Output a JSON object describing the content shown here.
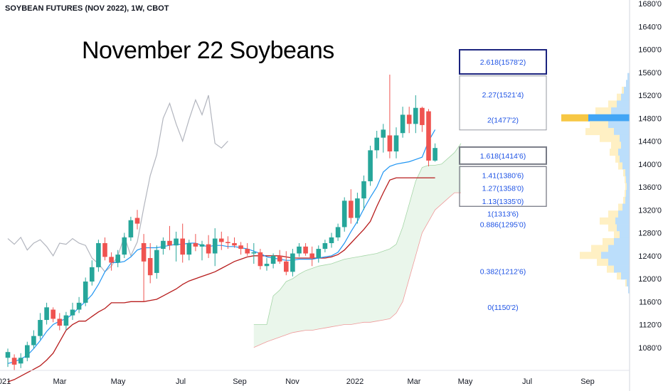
{
  "chart_data": {
    "type": "candlestick",
    "title": "SOYBEAN FUTURES (NOV 2022), 1W, CBOT",
    "annotation": "November 22 Soybeans",
    "ylim": [
      1040,
      1680
    ],
    "y_ticks": [
      "1680'0",
      "1640'0",
      "1600'0",
      "1560'0",
      "1520'0",
      "1480'0",
      "1440'0",
      "1400'0",
      "1360'0",
      "1320'0",
      "1280'0",
      "1240'0",
      "1200'0",
      "1160'0",
      "1120'0",
      "1080'0"
    ],
    "x_ticks": [
      "021",
      "Mar",
      "May",
      "Jul",
      "Sep",
      "Nov",
      "2022",
      "Mar",
      "May",
      "Jul",
      "Sep"
    ],
    "colors": {
      "up": "#26a69a",
      "down": "#ef5350",
      "conversion": "#2196f3",
      "base": "#b71c1c",
      "lagging": "#b2b5be",
      "cloud": "#e8f5e9",
      "fib_text": "#1e53e5",
      "vp_up": "#bbdefb",
      "vp_down": "#fff0c4",
      "poc_blue": "#42a5f5",
      "poc_yellow": "#f7c744"
    },
    "candles": [
      {
        "o": 1062,
        "h": 1078,
        "l": 1046,
        "c": 1072
      },
      {
        "o": 1062,
        "h": 1068,
        "l": 1040,
        "c": 1050
      },
      {
        "o": 1052,
        "h": 1070,
        "l": 1044,
        "c": 1062
      },
      {
        "o": 1062,
        "h": 1090,
        "l": 1056,
        "c": 1084
      },
      {
        "o": 1084,
        "h": 1110,
        "l": 1078,
        "c": 1100
      },
      {
        "o": 1100,
        "h": 1140,
        "l": 1094,
        "c": 1128
      },
      {
        "o": 1128,
        "h": 1158,
        "l": 1120,
        "c": 1150
      },
      {
        "o": 1146,
        "h": 1150,
        "l": 1124,
        "c": 1130
      },
      {
        "o": 1130,
        "h": 1140,
        "l": 1110,
        "c": 1118
      },
      {
        "o": 1118,
        "h": 1142,
        "l": 1110,
        "c": 1136
      },
      {
        "o": 1136,
        "h": 1158,
        "l": 1128,
        "c": 1146
      },
      {
        "o": 1146,
        "h": 1168,
        "l": 1140,
        "c": 1158
      },
      {
        "o": 1158,
        "h": 1202,
        "l": 1152,
        "c": 1195
      },
      {
        "o": 1195,
        "h": 1232,
        "l": 1188,
        "c": 1220
      },
      {
        "o": 1220,
        "h": 1268,
        "l": 1212,
        "c": 1262
      },
      {
        "o": 1262,
        "h": 1272,
        "l": 1232,
        "c": 1238
      },
      {
        "o": 1238,
        "h": 1246,
        "l": 1214,
        "c": 1228
      },
      {
        "o": 1228,
        "h": 1250,
        "l": 1220,
        "c": 1242
      },
      {
        "o": 1242,
        "h": 1280,
        "l": 1236,
        "c": 1272
      },
      {
        "o": 1272,
        "h": 1308,
        "l": 1266,
        "c": 1302
      },
      {
        "o": 1306,
        "h": 1320,
        "l": 1286,
        "c": 1296
      },
      {
        "o": 1262,
        "h": 1278,
        "l": 1160,
        "c": 1230
      },
      {
        "o": 1236,
        "h": 1262,
        "l": 1192,
        "c": 1206
      },
      {
        "o": 1210,
        "h": 1258,
        "l": 1200,
        "c": 1250
      },
      {
        "o": 1252,
        "h": 1272,
        "l": 1242,
        "c": 1266
      },
      {
        "o": 1266,
        "h": 1292,
        "l": 1250,
        "c": 1258
      },
      {
        "o": 1258,
        "h": 1282,
        "l": 1230,
        "c": 1270
      },
      {
        "o": 1270,
        "h": 1296,
        "l": 1228,
        "c": 1242
      },
      {
        "o": 1242,
        "h": 1268,
        "l": 1232,
        "c": 1262
      },
      {
        "o": 1262,
        "h": 1278,
        "l": 1248,
        "c": 1256
      },
      {
        "o": 1256,
        "h": 1266,
        "l": 1232,
        "c": 1260
      },
      {
        "o": 1260,
        "h": 1276,
        "l": 1236,
        "c": 1244
      },
      {
        "o": 1244,
        "h": 1288,
        "l": 1222,
        "c": 1270
      },
      {
        "o": 1270,
        "h": 1282,
        "l": 1250,
        "c": 1264
      },
      {
        "o": 1264,
        "h": 1274,
        "l": 1252,
        "c": 1262
      },
      {
        "o": 1262,
        "h": 1272,
        "l": 1254,
        "c": 1258
      },
      {
        "o": 1258,
        "h": 1264,
        "l": 1242,
        "c": 1252
      },
      {
        "o": 1252,
        "h": 1262,
        "l": 1240,
        "c": 1244
      },
      {
        "o": 1244,
        "h": 1262,
        "l": 1226,
        "c": 1246
      },
      {
        "o": 1246,
        "h": 1252,
        "l": 1216,
        "c": 1222
      },
      {
        "o": 1222,
        "h": 1236,
        "l": 1214,
        "c": 1226
      },
      {
        "o": 1226,
        "h": 1244,
        "l": 1218,
        "c": 1240
      },
      {
        "o": 1240,
        "h": 1250,
        "l": 1226,
        "c": 1230
      },
      {
        "o": 1230,
        "h": 1248,
        "l": 1206,
        "c": 1212
      },
      {
        "o": 1212,
        "h": 1252,
        "l": 1204,
        "c": 1244
      },
      {
        "o": 1244,
        "h": 1262,
        "l": 1238,
        "c": 1256
      },
      {
        "o": 1256,
        "h": 1262,
        "l": 1240,
        "c": 1244
      },
      {
        "o": 1244,
        "h": 1256,
        "l": 1222,
        "c": 1236
      },
      {
        "o": 1236,
        "h": 1258,
        "l": 1228,
        "c": 1252
      },
      {
        "o": 1252,
        "h": 1268,
        "l": 1246,
        "c": 1262
      },
      {
        "o": 1262,
        "h": 1280,
        "l": 1254,
        "c": 1272
      },
      {
        "o": 1272,
        "h": 1296,
        "l": 1266,
        "c": 1290
      },
      {
        "o": 1290,
        "h": 1342,
        "l": 1282,
        "c": 1336
      },
      {
        "o": 1336,
        "h": 1356,
        "l": 1296,
        "c": 1306
      },
      {
        "o": 1306,
        "h": 1350,
        "l": 1296,
        "c": 1340
      },
      {
        "o": 1340,
        "h": 1380,
        "l": 1320,
        "c": 1370
      },
      {
        "o": 1370,
        "h": 1432,
        "l": 1362,
        "c": 1424
      },
      {
        "o": 1424,
        "h": 1458,
        "l": 1410,
        "c": 1446
      },
      {
        "o": 1446,
        "h": 1470,
        "l": 1420,
        "c": 1460
      },
      {
        "o": 1450,
        "h": 1556,
        "l": 1410,
        "c": 1422
      },
      {
        "o": 1422,
        "h": 1464,
        "l": 1410,
        "c": 1450
      },
      {
        "o": 1454,
        "h": 1500,
        "l": 1446,
        "c": 1486
      },
      {
        "o": 1486,
        "h": 1500,
        "l": 1454,
        "c": 1470
      },
      {
        "o": 1470,
        "h": 1520,
        "l": 1454,
        "c": 1498
      },
      {
        "o": 1498,
        "h": 1500,
        "l": 1456,
        "c": 1468
      },
      {
        "o": 1492,
        "h": 1496,
        "l": 1396,
        "c": 1406
      },
      {
        "o": 1406,
        "h": 1436,
        "l": 1404,
        "c": 1428
      }
    ],
    "conversion_line": [
      1052,
      1055,
      1060,
      1066,
      1078,
      1092,
      1108,
      1120,
      1126,
      1130,
      1138,
      1150,
      1160,
      1172,
      1190,
      1212,
      1228,
      1228,
      1230,
      1238,
      1250,
      1254,
      1254,
      1254,
      1256,
      1258,
      1260,
      1260,
      1262,
      1262,
      1258,
      1256,
      1258,
      1258,
      1256,
      1256,
      1254,
      1252,
      1248,
      1244,
      1238,
      1236,
      1234,
      1232,
      1232,
      1234,
      1234,
      1234,
      1236,
      1238,
      1240,
      1246,
      1262,
      1282,
      1300,
      1322,
      1342,
      1360,
      1386,
      1396,
      1400,
      1402,
      1404,
      1408,
      1412,
      1440,
      1460
    ],
    "base_line": [
      1020,
      1024,
      1030,
      1036,
      1042,
      1048,
      1058,
      1070,
      1090,
      1110,
      1120,
      1126,
      1126,
      1134,
      1142,
      1148,
      1158,
      1158,
      1158,
      1160,
      1160,
      1160,
      1162,
      1164,
      1170,
      1176,
      1182,
      1190,
      1196,
      1200,
      1204,
      1208,
      1212,
      1218,
      1224,
      1230,
      1234,
      1238,
      1240,
      1240,
      1240,
      1240,
      1240,
      1238,
      1236,
      1236,
      1236,
      1236,
      1236,
      1236,
      1238,
      1242,
      1250,
      1262,
      1274,
      1286,
      1300,
      1326,
      1350,
      1372,
      1376,
      1376,
      1376,
      1376,
      1376,
      1376,
      1376
    ],
    "lagging_span": [
      1270,
      1260,
      1272,
      1250,
      1262,
      1268,
      1256,
      1240,
      1262,
      1260,
      1270,
      1262,
      1258,
      1236,
      1226,
      1212,
      1222,
      1240,
      1274,
      1240,
      1264,
      1324,
      1380,
      1416,
      1480,
      1506,
      1470,
      1440,
      1478,
      1512,
      1486,
      1520,
      1436,
      1428,
      1440
    ],
    "cloud_upper": [
      1120,
      1120,
      1120,
      1170,
      1180,
      1195,
      1200,
      1208,
      1214,
      1218,
      1222,
      1224,
      1226,
      1230,
      1234,
      1236,
      1238,
      1240,
      1242,
      1244,
      1248,
      1252,
      1260,
      1290,
      1330,
      1370,
      1394,
      1398,
      1398,
      1400,
      1410,
      1420,
      1436
    ],
    "cloud_lower": [
      1080,
      1085,
      1090,
      1094,
      1098,
      1102,
      1106,
      1108,
      1110,
      1110,
      1112,
      1114,
      1116,
      1118,
      1120,
      1120,
      1122,
      1124,
      1124,
      1126,
      1128,
      1130,
      1140,
      1160,
      1200,
      1240,
      1280,
      1300,
      1320,
      1330,
      1340,
      1350,
      1350
    ],
    "fib_levels": [
      {
        "label": "2.618",
        "price_text": "1578'2",
        "value": 1578.25,
        "box": "strong"
      },
      {
        "label": "2.27",
        "price_text": "1521'4",
        "value": 1521.5,
        "box": "a"
      },
      {
        "label": "2",
        "price_text": "1477'2",
        "value": 1477.25,
        "box": "a"
      },
      {
        "label": "1.618",
        "price_text": "1414'6",
        "value": 1414.75,
        "box": "mid"
      },
      {
        "label": "1.41",
        "price_text": "1380'6",
        "value": 1380.75,
        "box": "b"
      },
      {
        "label": "1.27",
        "price_text": "1358'0",
        "value": 1358.0,
        "box": "b"
      },
      {
        "label": "1.13",
        "price_text": "1335'0",
        "value": 1335.0,
        "box": "b"
      },
      {
        "label": "1",
        "price_text": "1313'6",
        "value": 1313.75,
        "box": "none"
      },
      {
        "label": "0.886",
        "price_text": "1295'0",
        "value": 1295.0,
        "box": "none"
      },
      {
        "label": "0.382",
        "price_text": "1212'6",
        "value": 1212.75,
        "box": "none"
      },
      {
        "label": "0",
        "price_text": "1150'2",
        "value": 1150.25,
        "box": "none"
      }
    ],
    "volume_profile": [
      {
        "p": 1552,
        "up": 3,
        "dn": 0
      },
      {
        "p": 1540,
        "up": 5,
        "dn": 0
      },
      {
        "p": 1528,
        "up": 8,
        "dn": 3
      },
      {
        "p": 1516,
        "up": 12,
        "dn": 6
      },
      {
        "p": 1504,
        "up": 18,
        "dn": 12
      },
      {
        "p": 1492,
        "up": 26,
        "dn": 22
      },
      {
        "p": 1480,
        "up": 58,
        "dn": 38
      },
      {
        "p": 1468,
        "up": 30,
        "dn": 26
      },
      {
        "p": 1456,
        "up": 22,
        "dn": 40
      },
      {
        "p": 1444,
        "up": 14,
        "dn": 28
      },
      {
        "p": 1432,
        "up": 12,
        "dn": 14
      },
      {
        "p": 1420,
        "up": 16,
        "dn": 12
      },
      {
        "p": 1408,
        "up": 14,
        "dn": 6
      },
      {
        "p": 1396,
        "up": 10,
        "dn": 6
      },
      {
        "p": 1384,
        "up": 6,
        "dn": 3
      },
      {
        "p": 1372,
        "up": 5,
        "dn": 2
      },
      {
        "p": 1360,
        "up": 4,
        "dn": 2
      },
      {
        "p": 1348,
        "up": 5,
        "dn": 2
      },
      {
        "p": 1336,
        "up": 6,
        "dn": 3
      },
      {
        "p": 1324,
        "up": 10,
        "dn": 6
      },
      {
        "p": 1312,
        "up": 16,
        "dn": 14
      },
      {
        "p": 1300,
        "up": 20,
        "dn": 22
      },
      {
        "p": 1288,
        "up": 18,
        "dn": 12
      },
      {
        "p": 1276,
        "up": 14,
        "dn": 8
      },
      {
        "p": 1264,
        "up": 22,
        "dn": 16
      },
      {
        "p": 1252,
        "up": 30,
        "dn": 24
      },
      {
        "p": 1240,
        "up": 40,
        "dn": 30
      },
      {
        "p": 1228,
        "up": 30,
        "dn": 16
      },
      {
        "p": 1216,
        "up": 22,
        "dn": 10
      },
      {
        "p": 1204,
        "up": 12,
        "dn": 6
      },
      {
        "p": 1192,
        "up": 4,
        "dn": 2
      },
      {
        "p": 1180,
        "up": 2,
        "dn": 0
      }
    ]
  }
}
